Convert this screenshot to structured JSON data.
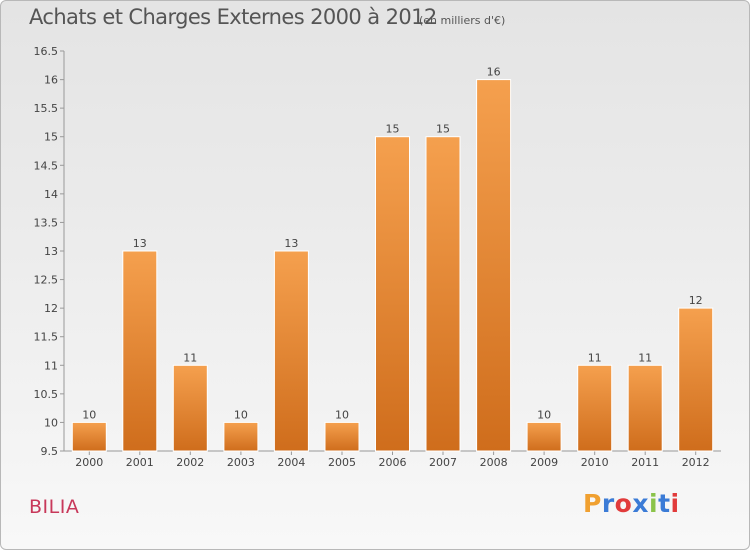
{
  "header": {
    "title": "Achats et Charges Externes 2000 à 2012",
    "unit": "(en milliers d'€)"
  },
  "footer": {
    "commune": "BILIA",
    "logo": "Proxiti"
  },
  "colors": {
    "bar_light": "#f5a04e",
    "bar_dark": "#cf6d1c",
    "title": "#555555",
    "commune": "#c8385a",
    "logo": [
      "#f0a030",
      "#3b7bd6",
      "#e13b3b",
      "#3b7bd6",
      "#8bc34a",
      "#3b7bd6",
      "#e13b3b"
    ]
  },
  "chart_data": {
    "type": "bar",
    "title": "Achats et Charges Externes 2000 à 2012",
    "subtitle": "(en milliers d'€)",
    "categories": [
      "2000",
      "2001",
      "2002",
      "2003",
      "2004",
      "2005",
      "2006",
      "2007",
      "2008",
      "2009",
      "2010",
      "2011",
      "2012"
    ],
    "values": [
      10,
      13,
      11,
      10,
      13,
      10,
      15,
      15,
      16,
      10,
      11,
      11,
      12
    ],
    "data_labels": [
      "10",
      "13",
      "11",
      "10",
      "13",
      "10",
      "15",
      "15",
      "16",
      "10",
      "11",
      "11",
      "12"
    ],
    "ylim": [
      9.5,
      16.5
    ],
    "yticks": [
      "9.5",
      "10",
      "10.5",
      "11",
      "11.5",
      "12",
      "12.5",
      "13",
      "13.5",
      "14",
      "14.5",
      "15",
      "15.5",
      "16",
      "16.5"
    ],
    "grid": false,
    "legend": "none"
  }
}
